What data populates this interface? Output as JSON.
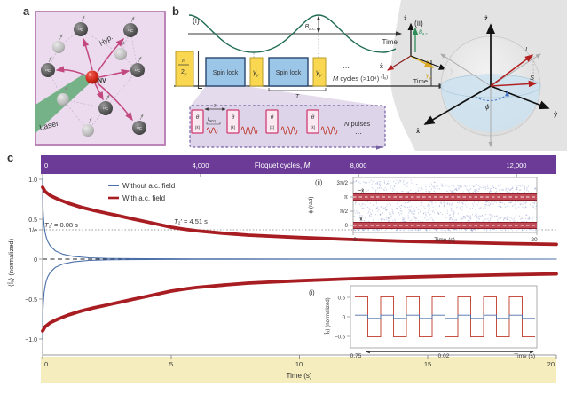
{
  "figure": {
    "panel_a_label": "a",
    "panel_b_label": "b",
    "panel_c_label": "c"
  },
  "panel_a": {
    "laser_label": "Laser",
    "nv_label": "NV",
    "hyp_label": "Hyp.",
    "c13_label": "¹³C"
  },
  "panel_b": {
    "i_label": "(i)",
    "ii_label": "(ii)",
    "time_label": "Time",
    "b_field_base": "B",
    "b_field_sub": "a.c.",
    "pi_numerator": "π",
    "pi_denominator": "2",
    "pulse_sub_y": "y",
    "spin_lock_label": "Spin lock",
    "gamma_base": "γ",
    "gamma_sub": "y",
    "cycles_M": "M",
    "cycles_rest": " cycles (>10⁴)",
    "dots": "⋯",
    "period_label": "T",
    "tau_label": "τ",
    "tacq_base": "t",
    "tacq_sub": "acq",
    "theta_label": "θ",
    "theta_sub": "(x̂)",
    "n_pulses_N": "N",
    "n_pulses_rest": " pulses",
    "frame": {
      "z": "ẑ",
      "x": "x̂",
      "y": "ŷ",
      "Ix": "⟨Îₓ⟩"
    },
    "sphere": {
      "z": "ẑ",
      "x": "x̂",
      "y": "ŷ",
      "I": "I",
      "S": "S",
      "phi": "ϕ"
    }
  },
  "panel_c": {
    "top_axis": {
      "title_pre": "Floquet cycles, ",
      "title_M": "M",
      "ticks": [
        "0",
        "4,000",
        "8,000",
        "12,000"
      ]
    },
    "y_axis": {
      "label": "⟨Îₓ⟩ (normalized)",
      "ticks": [
        "1.0",
        "0.5",
        "1/e",
        "0",
        "−0.5",
        "−1.0"
      ]
    },
    "x_axis": {
      "label": "Time (s)",
      "ticks": [
        "0",
        "5",
        "10",
        "15",
        "20"
      ]
    },
    "legend": [
      {
        "label": "Without a.c. field"
      },
      {
        "label": "With a.c. field"
      }
    ],
    "t2_short_T": "T",
    "t2_short_rest": "₂′ = 0.08 s",
    "t2_long_T": "T",
    "t2_long_rest": "₂′ = 4.51 s",
    "inset_ii": {
      "label": "(ii)",
      "ylabel": "ϕ (rad)",
      "yticks": [
        "3π/2",
        "π",
        "π/2",
        "0"
      ],
      "x_first": "0",
      "xlabel": "Time (s)",
      "x_last": "20",
      "band_top_label": "−x̂",
      "band_bottom_label": "x̂"
    },
    "inset_i": {
      "label": "(i)",
      "ylabel": "⟨Îₓ⟩ (normalized)",
      "yticks": [
        "0.6",
        "0",
        "−0.6"
      ],
      "x_first": "0.75",
      "x_span": "0.02",
      "xlabel": "Time (s)"
    }
  },
  "colors": {
    "purple_bar": "#6b3b97",
    "yellow_band": "#f6edbe",
    "red_curve": "#a81d22",
    "blue_curve": "#4a6fa8",
    "green": "#2f8f5b",
    "scatter_blue": "#8090c6",
    "pink_arrow": "#c2497f"
  },
  "chart_data": {
    "main": {
      "type": "line",
      "title": "",
      "xlabel": "Time (s)",
      "xlim": [
        0,
        20
      ],
      "ylabel": "⟨Îₓ⟩ (normalized)",
      "ylim": [
        -1,
        1
      ],
      "top_axis": {
        "label": "Floquet cycles, M",
        "ticks": [
          0,
          4000,
          8000,
          12000
        ],
        "max": 13000
      },
      "reference_lines": {
        "zero": 0,
        "one_over_e": 0.368
      },
      "legend_position": "top-left",
      "series": [
        {
          "name": "Without a.c. field",
          "color": "#4a6fa8",
          "T2": "0.08 s",
          "mirrored": true,
          "x": [
            0,
            0.01,
            0.03,
            0.06,
            0.1,
            0.15,
            0.2,
            0.3,
            0.5,
            0.8,
            1.2,
            1.8,
            2.5,
            4,
            6,
            10,
            20
          ],
          "y": [
            1.0,
            0.676,
            0.54,
            0.42,
            0.331,
            0.265,
            0.221,
            0.164,
            0.102,
            0.06,
            0.034,
            0.017,
            0.009,
            0.004,
            0.002,
            0.001,
            0.0
          ]
        },
        {
          "name": "With a.c. field",
          "color": "#a81d22",
          "T2": "4.51 s",
          "mirrored": true,
          "x": [
            0,
            0.1,
            0.3,
            0.6,
            1,
            1.5,
            2,
            2.5,
            3,
            3.5,
            4,
            4.5,
            5,
            5.5,
            6,
            7,
            8,
            9,
            10,
            12,
            14,
            16,
            18,
            20
          ],
          "y": [
            0.9,
            0.845,
            0.795,
            0.75,
            0.7,
            0.65,
            0.61,
            0.575,
            0.54,
            0.505,
            0.47,
            0.435,
            0.4,
            0.375,
            0.355,
            0.325,
            0.3,
            0.285,
            0.27,
            0.245,
            0.225,
            0.21,
            0.195,
            0.185
          ]
        }
      ]
    },
    "inset_ii": {
      "type": "scatter",
      "ylabel": "ϕ (rad)",
      "yticks_rad": [
        0,
        1.5708,
        3.1416,
        4.7124
      ],
      "xlabel": "Time (s)",
      "xlim": [
        0,
        20
      ],
      "bands_rad": [
        0,
        3.1416
      ],
      "band_labels": [
        "x̂",
        "−x̂"
      ],
      "n_points": 1500,
      "point_color": "#8090c6"
    },
    "inset_i": {
      "type": "line",
      "ylabel": "⟨Îₓ⟩ (normalized)",
      "yticks": [
        0.6,
        0,
        -0.6
      ],
      "x_start": 0.75,
      "x_span": 0.02,
      "xlabel": "Time (s)",
      "square_wave": {
        "periods": 7,
        "red_amplitude": 0.62,
        "blue_amplitude": 0.05
      }
    }
  }
}
